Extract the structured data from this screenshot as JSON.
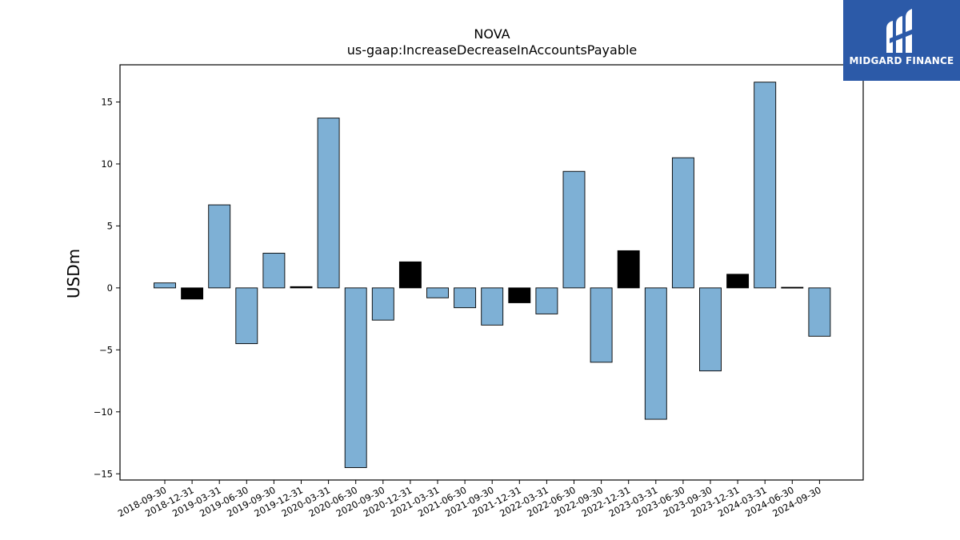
{
  "chart_data": {
    "type": "bar",
    "title": "NOVA",
    "subtitle": "us-gaap:IncreaseDecreaseInAccountsPayable",
    "xlabel": "",
    "ylabel": "USDm",
    "ylim": [
      -15.5,
      18
    ],
    "yticks": [
      -15,
      -10,
      -5,
      0,
      5,
      10,
      15
    ],
    "ytick_labels": [
      "−15",
      "−10",
      "−5",
      "0",
      "5",
      "10",
      "15"
    ],
    "categories": [
      "2018-09-30",
      "2018-12-31",
      "2019-03-31",
      "2019-06-30",
      "2019-09-30",
      "2019-12-31",
      "2020-03-31",
      "2020-06-30",
      "2020-09-30",
      "2020-12-31",
      "2021-03-31",
      "2021-06-30",
      "2021-09-30",
      "2021-12-31",
      "2022-03-31",
      "2022-06-30",
      "2022-09-30",
      "2022-12-31",
      "2023-03-31",
      "2023-06-30",
      "2023-09-30",
      "2023-12-31",
      "2024-03-31",
      "2024-06-30",
      "2024-09-30"
    ],
    "values": [
      0.4,
      -0.9,
      6.7,
      -4.5,
      2.8,
      0.1,
      13.7,
      -14.5,
      -2.6,
      2.1,
      -0.8,
      -1.6,
      -3.0,
      -1.2,
      -2.1,
      9.4,
      -6.0,
      3.0,
      -10.6,
      10.5,
      -6.7,
      1.1,
      16.6,
      0.05,
      -3.9
    ],
    "bar_colors": [
      "#7eb0d5",
      "#000000",
      "#7eb0d5",
      "#7eb0d5",
      "#7eb0d5",
      "#000000",
      "#7eb0d5",
      "#7eb0d5",
      "#7eb0d5",
      "#000000",
      "#7eb0d5",
      "#7eb0d5",
      "#7eb0d5",
      "#000000",
      "#7eb0d5",
      "#7eb0d5",
      "#7eb0d5",
      "#000000",
      "#7eb0d5",
      "#7eb0d5",
      "#7eb0d5",
      "#000000",
      "#7eb0d5",
      "#000000",
      "#7eb0d5"
    ],
    "grid": false,
    "legend": "none"
  },
  "logo": {
    "text": "MIDGARD FINANCE",
    "background": "#2c5aa8"
  }
}
